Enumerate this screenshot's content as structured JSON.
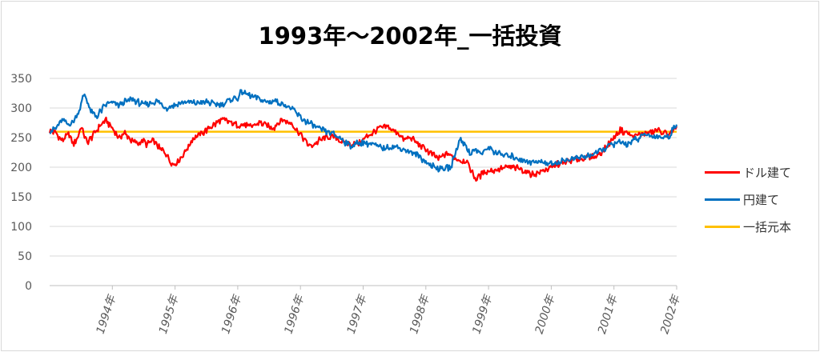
{
  "chart_data": {
    "type": "line",
    "title": "1993年～2002年_一括投資",
    "xlabel": "",
    "ylabel": "",
    "ylim": [
      0,
      350
    ],
    "yticks": [
      0,
      50,
      100,
      150,
      200,
      250,
      300,
      350
    ],
    "xticks": [
      "1994年",
      "1995年",
      "1996年",
      "1996年",
      "1997年",
      "1998年",
      "1999年",
      "2000年",
      "2001年",
      "2002年"
    ],
    "grid": true,
    "legend_position": "right",
    "series": [
      {
        "name": "ドル建て",
        "color": "#ff0000",
        "x": [
          0.0,
          0.1,
          0.2,
          0.3,
          0.38,
          0.45,
          0.5,
          0.6,
          0.7,
          0.8,
          0.9,
          1.0,
          1.1,
          1.2,
          1.3,
          1.4,
          1.5,
          1.55,
          1.65,
          1.75,
          1.85,
          1.95,
          2.05,
          2.15,
          2.3,
          2.45,
          2.6,
          2.75,
          2.9,
          3.0,
          3.1,
          3.2,
          3.35,
          3.45,
          3.55,
          3.7,
          3.85,
          4.0,
          4.15,
          4.3,
          4.4,
          4.55,
          4.7,
          4.8,
          4.95,
          5.1,
          5.25,
          5.4,
          5.55,
          5.65,
          5.75,
          5.9,
          6.05,
          6.2,
          6.35,
          6.5,
          6.65,
          6.8,
          6.95,
          7.1,
          7.3,
          7.5,
          7.7,
          7.9,
          8.1,
          8.3,
          8.5,
          8.7,
          8.85,
          9.0,
          9.1,
          9.2,
          9.3,
          9.4,
          9.55,
          9.7,
          9.85,
          10.0
        ],
        "values": [
          262,
          258,
          245,
          255,
          240,
          250,
          268,
          240,
          255,
          270,
          280,
          265,
          250,
          258,
          245,
          240,
          245,
          238,
          245,
          232,
          225,
          205,
          210,
          225,
          250,
          258,
          270,
          280,
          275,
          270,
          272,
          268,
          275,
          272,
          265,
          280,
          275,
          255,
          235,
          245,
          250,
          252,
          240,
          238,
          242,
          255,
          265,
          268,
          258,
          245,
          250,
          238,
          225,
          215,
          222,
          213,
          210,
          180,
          193,
          195,
          200,
          198,
          188,
          195,
          205,
          210,
          215,
          218,
          230,
          250,
          262,
          258,
          252,
          255,
          258,
          262,
          255,
          265
        ]
      },
      {
        "name": "円建て",
        "color": "#0070c0",
        "x": [
          0.0,
          0.1,
          0.2,
          0.3,
          0.35,
          0.45,
          0.5,
          0.55,
          0.65,
          0.75,
          0.85,
          0.95,
          1.1,
          1.3,
          1.5,
          1.7,
          1.85,
          2.0,
          2.15,
          2.3,
          2.5,
          2.7,
          2.85,
          2.95,
          3.0,
          3.05,
          3.15,
          3.3,
          3.45,
          3.6,
          3.75,
          3.9,
          4.05,
          4.2,
          4.35,
          4.5,
          4.65,
          4.8,
          4.95,
          5.1,
          5.3,
          5.5,
          5.7,
          5.9,
          6.05,
          6.2,
          6.4,
          6.55,
          6.7,
          6.8,
          6.9,
          7.0,
          7.1,
          7.25,
          7.4,
          7.55,
          7.7,
          7.85,
          8.0,
          8.15,
          8.35,
          8.55,
          8.75,
          8.9,
          9.05,
          9.2,
          9.35,
          9.5,
          9.65,
          9.8,
          9.9,
          10.0
        ],
        "values": [
          262,
          265,
          280,
          272,
          275,
          290,
          305,
          325,
          295,
          285,
          300,
          310,
          305,
          315,
          305,
          312,
          300,
          305,
          310,
          308,
          310,
          305,
          312,
          318,
          315,
          328,
          322,
          318,
          310,
          312,
          305,
          295,
          280,
          270,
          262,
          258,
          248,
          235,
          242,
          240,
          232,
          235,
          228,
          218,
          205,
          198,
          200,
          250,
          225,
          228,
          222,
          235,
          225,
          220,
          218,
          212,
          208,
          210,
          205,
          210,
          215,
          218,
          225,
          235,
          242,
          240,
          246,
          255,
          252,
          250,
          255,
          275
        ]
      },
      {
        "name": "一括元本",
        "color": "#ffc000",
        "x": [
          0.0,
          10.0
        ],
        "values": [
          260,
          260
        ]
      }
    ]
  }
}
